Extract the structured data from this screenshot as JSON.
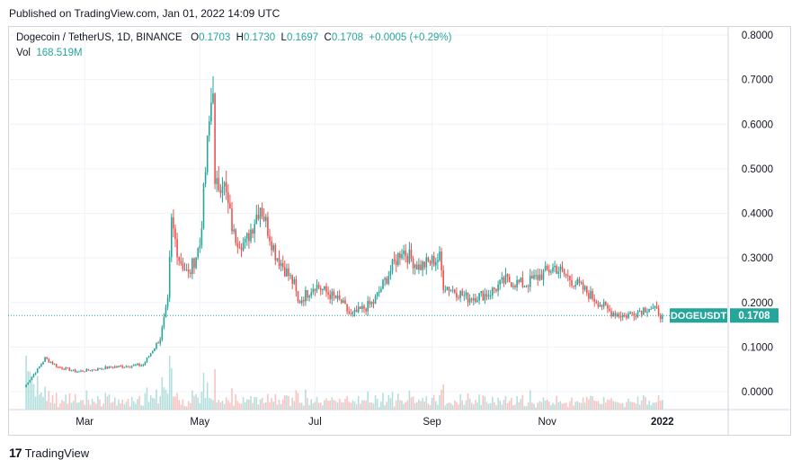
{
  "header": {
    "published": "Published on TradingView.com, Jan 01, 2022 14:09 UTC"
  },
  "legend": {
    "symbol": "Dogecoin / TetherUS, 1D, BINANCE",
    "o_label": "O",
    "o": "0.1703",
    "h_label": "H",
    "h": "0.1730",
    "l_label": "L",
    "l": "0.1697",
    "c_label": "C",
    "c": "0.1708",
    "change": "+0.0005 (+0.29%)",
    "vol_label": "Vol",
    "vol": "168.519M"
  },
  "price_tag": {
    "label": "DOGEUSDT",
    "value": "0.1708"
  },
  "footer": {
    "brand": "TradingView",
    "logo": "17"
  },
  "colors": {
    "up": "#26a69a",
    "down": "#ef5350",
    "grid": "#f0f3fa",
    "axis": "#d1d4dc"
  },
  "chart_data": {
    "type": "candlestick",
    "symbol": "DOGEUSDT",
    "interval": "1D",
    "y_ticks": [
      "0.8000",
      "0.7000",
      "0.6000",
      "0.5000",
      "0.4000",
      "0.3000",
      "0.2000",
      "0.1000",
      "0.0000"
    ],
    "x_ticks": [
      "Mar",
      "May",
      "Jul",
      "Sep",
      "Nov",
      "2022"
    ],
    "ylim": [
      -0.07,
      0.81
    ],
    "grid": true,
    "last_price": 0.1708,
    "x": [
      "2021-01-28",
      "2021-02-04",
      "2021-02-08",
      "2021-02-15",
      "2021-02-25",
      "2021-03-15",
      "2021-04-01",
      "2021-04-10",
      "2021-04-14",
      "2021-04-16",
      "2021-04-20",
      "2021-04-25",
      "2021-05-01",
      "2021-05-05",
      "2021-05-08",
      "2021-05-09",
      "2021-05-13",
      "2021-05-19",
      "2021-05-25",
      "2021-06-02",
      "2021-06-10",
      "2021-06-20",
      "2021-06-22",
      "2021-07-01",
      "2021-07-15",
      "2021-07-20",
      "2021-08-01",
      "2021-08-16",
      "2021-08-25",
      "2021-09-05",
      "2021-09-07",
      "2021-09-20",
      "2021-10-01",
      "2021-10-10",
      "2021-10-20",
      "2021-10-28",
      "2021-11-05",
      "2021-11-20",
      "2021-12-04",
      "2021-12-12",
      "2021-12-25",
      "2022-01-01"
    ],
    "values": [
      0.01,
      0.05,
      0.075,
      0.055,
      0.045,
      0.055,
      0.06,
      0.12,
      0.2,
      0.38,
      0.3,
      0.26,
      0.33,
      0.55,
      0.7,
      0.45,
      0.48,
      0.35,
      0.33,
      0.42,
      0.31,
      0.24,
      0.2,
      0.24,
      0.2,
      0.17,
      0.2,
      0.32,
      0.28,
      0.3,
      0.24,
      0.21,
      0.22,
      0.25,
      0.24,
      0.26,
      0.28,
      0.23,
      0.18,
      0.17,
      0.19,
      0.1708
    ]
  }
}
